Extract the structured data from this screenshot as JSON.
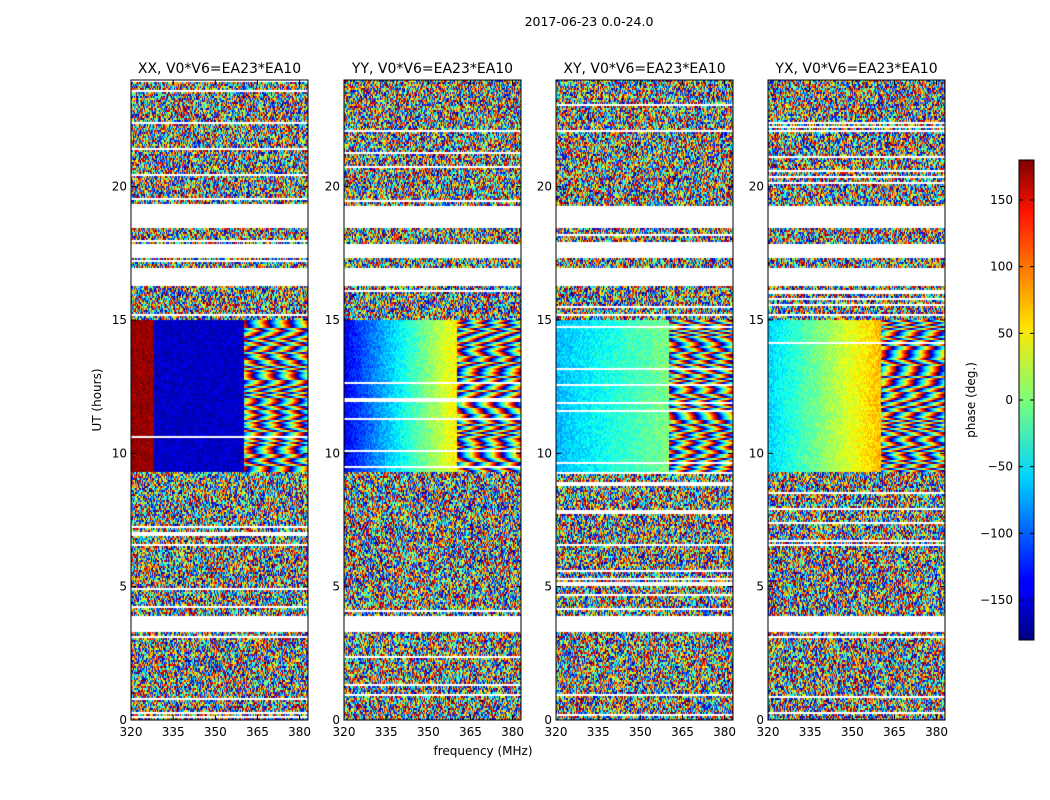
{
  "figure": {
    "suptitle": "2017-06-23 0.0-24.0"
  },
  "chart_data": {
    "type": "heatmap",
    "xlabel": "frequency (MHz)",
    "ylabel": "UT (hours)",
    "xlim": [
      320,
      383
    ],
    "ylim": [
      0,
      24
    ],
    "xticks": [
      320,
      335,
      350,
      365,
      380
    ],
    "yticks": [
      0,
      5,
      10,
      15,
      20
    ],
    "panels": [
      {
        "title": "XX, V0*V6=EA23*EA10",
        "polarization": "XX"
      },
      {
        "title": "YY, V0*V6=EA23*EA10",
        "polarization": "YY"
      },
      {
        "title": "XY, V0*V6=EA23*EA10",
        "polarization": "XY"
      },
      {
        "title": "YX, V0*V6=EA23*EA10",
        "polarization": "YX"
      }
    ],
    "colorbar": {
      "label": "phase (deg.)",
      "range": [
        -180,
        180
      ],
      "ticks": [
        -150,
        -100,
        -50,
        0,
        50,
        100,
        150
      ],
      "tick_labels": [
        "−150",
        "−100",
        "−50",
        "0",
        "50",
        "100",
        "150"
      ],
      "colormap": "jet"
    },
    "data_gaps_ut_hours": [
      [
        3.3,
        3.9
      ],
      [
        16.3,
        17.0
      ],
      [
        17.4,
        17.9
      ],
      [
        18.5,
        19.3
      ]
    ],
    "coherent_window_ut_hours": [
      9.3,
      15.0
    ],
    "coherent_band_edge_mhz": 360
  }
}
